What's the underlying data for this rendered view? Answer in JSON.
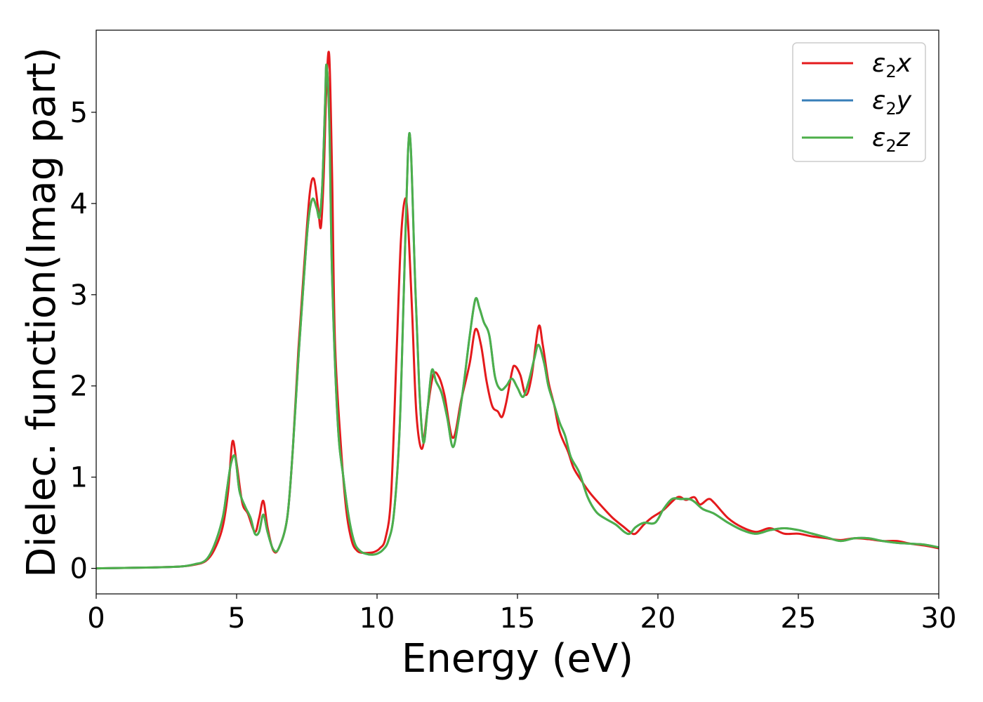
{
  "chart_data": {
    "type": "line",
    "xlabel": "Energy (eV)",
    "ylabel": "Dielec. function(Imag part)",
    "xlim": [
      0,
      30
    ],
    "ylim": [
      -0.28,
      5.9
    ],
    "xticks": [
      0,
      5,
      10,
      15,
      20,
      25,
      30
    ],
    "yticks": [
      0,
      1,
      2,
      3,
      4,
      5
    ],
    "grid": false,
    "legend_position": "top-right",
    "series": [
      {
        "name": "ε2x",
        "legend_main": "ε",
        "legend_sub": "2",
        "legend_var": "x",
        "color": "#e41a1c",
        "x": [
          0,
          1,
          2,
          3,
          3.5,
          3.9,
          4.2,
          4.5,
          4.7,
          4.85,
          5.0,
          5.2,
          5.4,
          5.65,
          5.8,
          5.95,
          6.1,
          6.3,
          6.5,
          6.8,
          7.0,
          7.2,
          7.4,
          7.6,
          7.75,
          7.9,
          8.0,
          8.1,
          8.2,
          8.3,
          8.4,
          8.5,
          8.7,
          8.9,
          9.1,
          9.3,
          9.5,
          9.7,
          9.9,
          10.1,
          10.3,
          10.5,
          10.7,
          10.85,
          11.0,
          11.1,
          11.25,
          11.4,
          11.6,
          11.8,
          12.0,
          12.2,
          12.4,
          12.7,
          13.0,
          13.3,
          13.5,
          13.7,
          13.9,
          14.1,
          14.3,
          14.45,
          14.6,
          14.8,
          14.9,
          15.1,
          15.3,
          15.5,
          15.75,
          15.9,
          16.1,
          16.3,
          16.5,
          16.8,
          17.0,
          17.3,
          17.6,
          18.0,
          18.4,
          18.8,
          19.0,
          19.2,
          19.5,
          19.8,
          20.2,
          20.7,
          21.0,
          21.3,
          21.5,
          21.8,
          22.0,
          22.5,
          23.0,
          23.5,
          24.0,
          24.5,
          25.0,
          25.5,
          26.0,
          26.5,
          27.0,
          27.5,
          28.0,
          28.5,
          29.0,
          29.5,
          30.0
        ],
        "y": [
          0,
          0.005,
          0.01,
          0.02,
          0.04,
          0.08,
          0.2,
          0.45,
          0.85,
          1.39,
          1.15,
          0.72,
          0.6,
          0.4,
          0.55,
          0.74,
          0.45,
          0.2,
          0.22,
          0.55,
          1.3,
          2.4,
          3.3,
          4.1,
          4.27,
          3.95,
          3.74,
          4.3,
          5.3,
          5.61,
          4.3,
          2.5,
          1.4,
          0.65,
          0.3,
          0.19,
          0.17,
          0.17,
          0.18,
          0.22,
          0.33,
          0.8,
          2.4,
          3.6,
          4.05,
          3.8,
          2.8,
          1.7,
          1.31,
          1.75,
          2.12,
          2.1,
          1.9,
          1.43,
          1.85,
          2.25,
          2.62,
          2.45,
          2.05,
          1.78,
          1.72,
          1.66,
          1.82,
          2.15,
          2.22,
          2.12,
          1.9,
          2.1,
          2.65,
          2.45,
          2.05,
          1.8,
          1.5,
          1.28,
          1.1,
          0.95,
          0.82,
          0.68,
          0.55,
          0.45,
          0.4,
          0.38,
          0.48,
          0.56,
          0.64,
          0.78,
          0.75,
          0.78,
          0.7,
          0.76,
          0.72,
          0.55,
          0.45,
          0.4,
          0.44,
          0.38,
          0.38,
          0.35,
          0.33,
          0.31,
          0.33,
          0.32,
          0.3,
          0.3,
          0.27,
          0.25,
          0.22
        ]
      },
      {
        "name": "ε2y",
        "legend_main": "ε",
        "legend_sub": "2",
        "legend_var": "y",
        "color": "#377eb8",
        "x": [
          0,
          1,
          2,
          3,
          3.5,
          3.9,
          4.2,
          4.5,
          4.65,
          4.8,
          4.95,
          5.1,
          5.3,
          5.5,
          5.65,
          5.8,
          5.95,
          6.1,
          6.3,
          6.5,
          6.8,
          7.0,
          7.2,
          7.4,
          7.55,
          7.7,
          7.85,
          7.95,
          8.05,
          8.15,
          8.2,
          8.3,
          8.4,
          8.6,
          8.8,
          9.0,
          9.2,
          9.4,
          9.6,
          9.8,
          10.0,
          10.2,
          10.4,
          10.6,
          10.8,
          10.95,
          11.1,
          11.2,
          11.35,
          11.5,
          11.65,
          11.8,
          11.95,
          12.1,
          12.3,
          12.5,
          12.7,
          12.9,
          13.1,
          13.3,
          13.5,
          13.65,
          13.8,
          14.0,
          14.2,
          14.4,
          14.6,
          14.8,
          15.0,
          15.2,
          15.4,
          15.6,
          15.75,
          15.95,
          16.1,
          16.3,
          16.5,
          16.7,
          16.9,
          17.2,
          17.5,
          17.8,
          18.1,
          18.5,
          18.8,
          19.0,
          19.2,
          19.5,
          19.9,
          20.2,
          20.5,
          20.8,
          21.1,
          21.3,
          21.6,
          22.0,
          22.5,
          23.0,
          23.5,
          24.0,
          24.5,
          25.0,
          25.5,
          26.0,
          26.5,
          27.0,
          27.5,
          28.0,
          28.5,
          29.0,
          29.5,
          30.0
        ],
        "y": [
          0,
          0.005,
          0.01,
          0.02,
          0.045,
          0.09,
          0.25,
          0.55,
          0.85,
          1.15,
          1.22,
          0.85,
          0.68,
          0.55,
          0.38,
          0.4,
          0.59,
          0.4,
          0.21,
          0.22,
          0.55,
          1.3,
          2.3,
          3.2,
          3.8,
          4.05,
          3.95,
          3.85,
          4.2,
          5.1,
          5.52,
          4.9,
          3.2,
          1.6,
          1.0,
          0.55,
          0.28,
          0.19,
          0.16,
          0.15,
          0.16,
          0.2,
          0.3,
          0.6,
          1.5,
          3.0,
          4.55,
          4.62,
          3.2,
          2.0,
          1.38,
          1.75,
          2.17,
          2.05,
          1.92,
          1.65,
          1.33,
          1.62,
          2.05,
          2.55,
          2.95,
          2.85,
          2.7,
          2.55,
          2.1,
          1.96,
          2.0,
          2.08,
          1.98,
          1.88,
          2.05,
          2.3,
          2.45,
          2.25,
          2.0,
          1.8,
          1.6,
          1.45,
          1.22,
          1.05,
          0.78,
          0.62,
          0.55,
          0.48,
          0.4,
          0.38,
          0.45,
          0.5,
          0.5,
          0.65,
          0.76,
          0.76,
          0.76,
          0.73,
          0.65,
          0.6,
          0.5,
          0.42,
          0.38,
          0.42,
          0.44,
          0.42,
          0.38,
          0.34,
          0.3,
          0.33,
          0.33,
          0.3,
          0.28,
          0.27,
          0.26,
          0.23
        ]
      },
      {
        "name": "ε2z",
        "legend_main": "ε",
        "legend_sub": "2",
        "legend_var": "z",
        "color": "#4daf4a",
        "x": [
          0,
          1,
          2,
          3,
          3.5,
          3.9,
          4.2,
          4.5,
          4.65,
          4.8,
          4.95,
          5.1,
          5.3,
          5.5,
          5.65,
          5.8,
          5.95,
          6.1,
          6.3,
          6.5,
          6.8,
          7.0,
          7.2,
          7.4,
          7.55,
          7.7,
          7.85,
          7.95,
          8.05,
          8.15,
          8.2,
          8.3,
          8.4,
          8.6,
          8.8,
          9.0,
          9.2,
          9.4,
          9.6,
          9.8,
          10.0,
          10.2,
          10.4,
          10.6,
          10.8,
          10.95,
          11.1,
          11.2,
          11.35,
          11.5,
          11.65,
          11.8,
          11.95,
          12.1,
          12.3,
          12.5,
          12.7,
          12.9,
          13.1,
          13.3,
          13.5,
          13.65,
          13.8,
          14.0,
          14.2,
          14.4,
          14.6,
          14.8,
          15.0,
          15.2,
          15.4,
          15.6,
          15.75,
          15.95,
          16.1,
          16.3,
          16.5,
          16.7,
          16.9,
          17.2,
          17.5,
          17.8,
          18.1,
          18.5,
          18.8,
          19.0,
          19.2,
          19.5,
          19.9,
          20.2,
          20.5,
          20.8,
          21.1,
          21.3,
          21.6,
          22.0,
          22.5,
          23.0,
          23.5,
          24.0,
          24.5,
          25.0,
          25.5,
          26.0,
          26.5,
          27.0,
          27.5,
          28.0,
          28.5,
          29.0,
          29.5,
          30.0
        ],
        "y": [
          0,
          0.005,
          0.01,
          0.02,
          0.045,
          0.09,
          0.25,
          0.55,
          0.85,
          1.15,
          1.22,
          0.85,
          0.68,
          0.55,
          0.38,
          0.4,
          0.59,
          0.4,
          0.21,
          0.22,
          0.55,
          1.3,
          2.3,
          3.2,
          3.8,
          4.05,
          3.95,
          3.85,
          4.2,
          5.1,
          5.52,
          4.9,
          3.2,
          1.6,
          1.0,
          0.55,
          0.28,
          0.19,
          0.16,
          0.15,
          0.16,
          0.2,
          0.3,
          0.6,
          1.5,
          3.0,
          4.55,
          4.62,
          3.2,
          2.0,
          1.38,
          1.75,
          2.17,
          2.05,
          1.92,
          1.65,
          1.33,
          1.62,
          2.05,
          2.55,
          2.95,
          2.85,
          2.7,
          2.55,
          2.1,
          1.96,
          2.0,
          2.08,
          1.98,
          1.88,
          2.05,
          2.3,
          2.45,
          2.25,
          2.0,
          1.8,
          1.6,
          1.45,
          1.22,
          1.05,
          0.78,
          0.62,
          0.55,
          0.48,
          0.4,
          0.38,
          0.45,
          0.5,
          0.5,
          0.65,
          0.76,
          0.76,
          0.76,
          0.73,
          0.65,
          0.6,
          0.5,
          0.42,
          0.38,
          0.42,
          0.44,
          0.42,
          0.38,
          0.34,
          0.3,
          0.33,
          0.33,
          0.3,
          0.28,
          0.27,
          0.26,
          0.23
        ]
      }
    ]
  }
}
